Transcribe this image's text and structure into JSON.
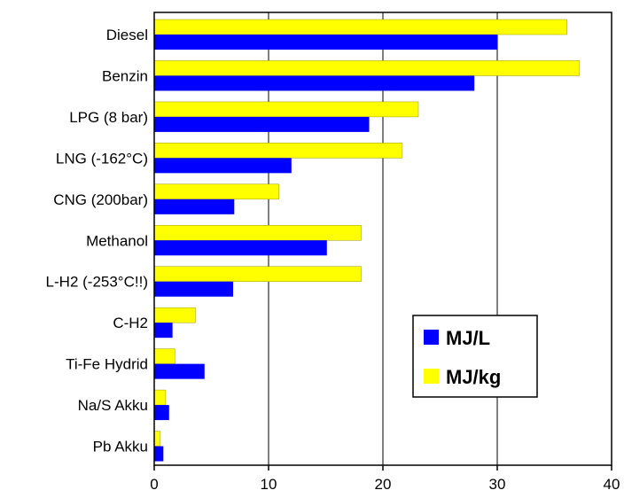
{
  "chart_data": {
    "type": "bar",
    "orientation": "horizontal",
    "categories": [
      "Diesel",
      "Benzin",
      "LPG (8 bar)",
      "LNG (-162°C)",
      "CNG (200bar)",
      "Methanol",
      "L-H2 (-253°C!!)",
      "C-H2",
      "Ti-Fe Hydrid",
      "Na/S Akku",
      "Pb Akku"
    ],
    "series": [
      {
        "name": "MJ/L",
        "color": "#0000ff",
        "values": [
          30.0,
          28.0,
          18.8,
          12.0,
          7.0,
          15.1,
          6.9,
          1.6,
          4.4,
          1.3,
          0.8
        ]
      },
      {
        "name": "MJ/kg",
        "color": "#ffff00",
        "values": [
          36.1,
          37.2,
          23.1,
          21.7,
          10.9,
          18.1,
          18.1,
          3.6,
          1.8,
          1.0,
          0.5
        ]
      }
    ],
    "xlim": [
      0,
      40
    ],
    "xticks": [
      0,
      10,
      20,
      30,
      40
    ],
    "grid": "vertical",
    "legend": "lower-right",
    "title": "",
    "xlabel": "",
    "ylabel": ""
  }
}
